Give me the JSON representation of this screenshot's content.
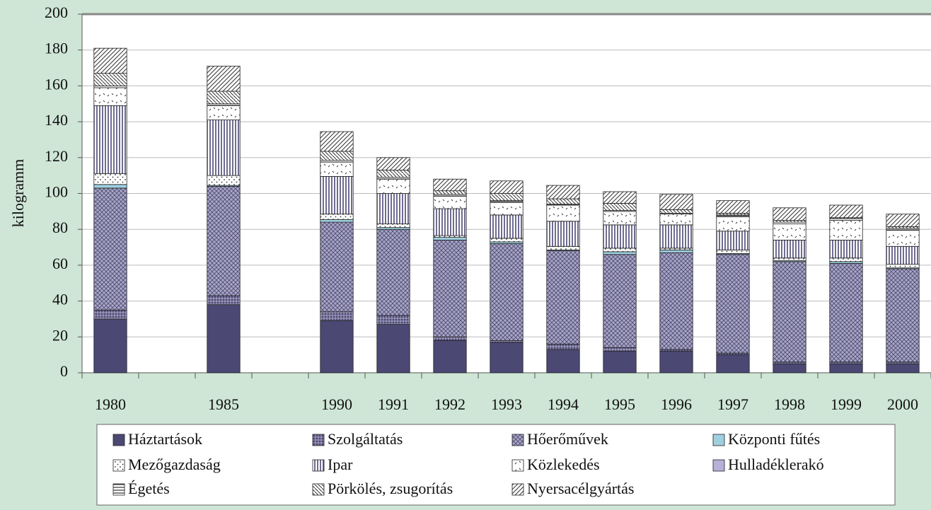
{
  "chart_data": {
    "type": "stacked_bar",
    "y_label": "kilogramm",
    "categories": [
      "1980",
      null,
      "1985",
      null,
      "1990",
      "1991",
      "1992",
      "1993",
      "1994",
      "1995",
      "1996",
      "1997",
      "1998",
      "1999",
      "2000"
    ],
    "ylim": [
      0,
      200
    ],
    "yticks": [
      0,
      20,
      40,
      60,
      80,
      100,
      120,
      140,
      160,
      180,
      200
    ],
    "grid": true,
    "series": [
      {
        "name": "Háztartások",
        "color": "#4b4874",
        "pattern": "solid",
        "values": [
          30,
          null,
          38,
          null,
          29,
          27,
          18,
          17,
          13,
          12,
          12,
          10,
          5,
          5,
          5
        ]
      },
      {
        "name": "Szolgáltatás",
        "color": "#6e6890",
        "pattern": "cross",
        "values": [
          5,
          null,
          5,
          null,
          5,
          5,
          2,
          1,
          3,
          2,
          1,
          1,
          1,
          1,
          1
        ]
      },
      {
        "name": "Hőerőművek",
        "color": "#a9a6c4",
        "pattern": "diamond",
        "values": [
          68,
          null,
          61,
          null,
          50,
          48,
          54,
          54,
          52,
          52,
          54,
          55,
          56,
          55,
          52
        ]
      },
      {
        "name": "Központi fűtés",
        "color": "#9fd0e0",
        "pattern": "solid",
        "values": [
          2,
          null,
          0.5,
          null,
          1.5,
          1,
          1.5,
          1,
          0.5,
          1.5,
          1.5,
          0.5,
          0.5,
          1,
          0.5
        ]
      },
      {
        "name": "Mezőgazdaság",
        "color": "#ffffff",
        "pattern": "dots",
        "values": [
          6,
          null,
          5.5,
          null,
          3,
          2,
          1,
          2,
          2,
          2,
          1,
          2,
          1.5,
          2,
          2
        ]
      },
      {
        "name": "Ipar",
        "color": "#7a769c",
        "pattern": "vlines",
        "values": [
          38,
          null,
          31,
          null,
          21,
          17,
          15,
          13,
          14,
          13,
          13,
          10.5,
          10,
          10,
          10
        ]
      },
      {
        "name": "Közlekedés",
        "color": "#ffffff",
        "pattern": "ticks",
        "values": [
          10,
          null,
          8,
          null,
          8,
          8,
          7,
          7,
          9,
          7.5,
          6,
          8,
          9,
          11,
          9
        ]
      },
      {
        "name": "Hulladéklerakó",
        "color": "#b8b0d8",
        "pattern": "solid",
        "values": [
          0,
          null,
          0,
          null,
          0,
          0,
          0,
          0,
          0,
          0,
          0,
          0,
          0,
          0,
          0
        ]
      },
      {
        "name": "Égetés",
        "color": "#ffffff",
        "pattern": "hlines",
        "values": [
          1,
          null,
          1,
          null,
          1,
          1,
          1,
          1,
          0.5,
          0.5,
          0.5,
          1,
          1,
          1,
          1
        ]
      },
      {
        "name": "Pörkölés, zsugorítás",
        "color": "#ffffff",
        "pattern": "back",
        "values": [
          7,
          null,
          7,
          null,
          5,
          4,
          2,
          4,
          3,
          4,
          2,
          1,
          1,
          0.5,
          1
        ]
      },
      {
        "name": "Nyersacélgyártás",
        "color": "#ffffff",
        "pattern": "diag",
        "values": [
          14,
          null,
          14,
          null,
          11,
          7,
          6.5,
          7,
          7.5,
          6.5,
          8.5,
          7,
          7,
          7,
          7
        ]
      }
    ]
  }
}
